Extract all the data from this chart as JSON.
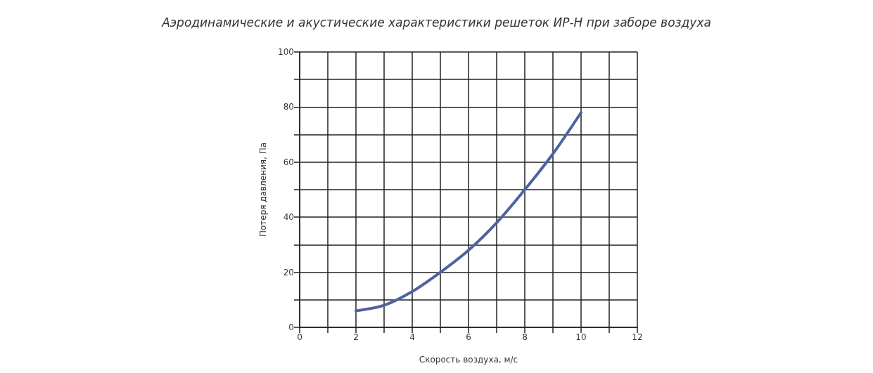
{
  "chart_data": {
    "type": "line",
    "title": "Аэродинамические и акустические характеристики решеток ИР-Н при заборе воздуха",
    "xlabel": "Скорость воздуха, м/с",
    "ylabel": "Потеря давления, Па",
    "x": [
      2,
      3,
      4,
      5,
      6,
      7,
      8,
      9,
      10
    ],
    "series": [
      {
        "color": "#4f62a0",
        "values": [
          6,
          8,
          13,
          20,
          28,
          38,
          50,
          63,
          78
        ]
      }
    ],
    "xlim": [
      0,
      12
    ],
    "ylim": [
      0,
      100
    ],
    "xticks": [
      0,
      {
        "value": 1,
        "label": null
      },
      2,
      {
        "value": 3,
        "label": null
      },
      4,
      {
        "value": 5,
        "label": null
      },
      6,
      {
        "value": 7,
        "label": null
      },
      8,
      {
        "value": 9,
        "label": null
      },
      10,
      {
        "value": 11,
        "label": null
      },
      12
    ],
    "yticks": [
      0,
      {
        "value": 10,
        "label": null
      },
      20,
      {
        "value": 30,
        "label": null
      },
      40,
      {
        "value": 50,
        "label": null
      },
      60,
      {
        "value": 70,
        "label": null
      },
      80,
      {
        "value": 90,
        "label": null
      },
      100
    ],
    "grid": true,
    "marker": "none",
    "line_style": "solid"
  }
}
